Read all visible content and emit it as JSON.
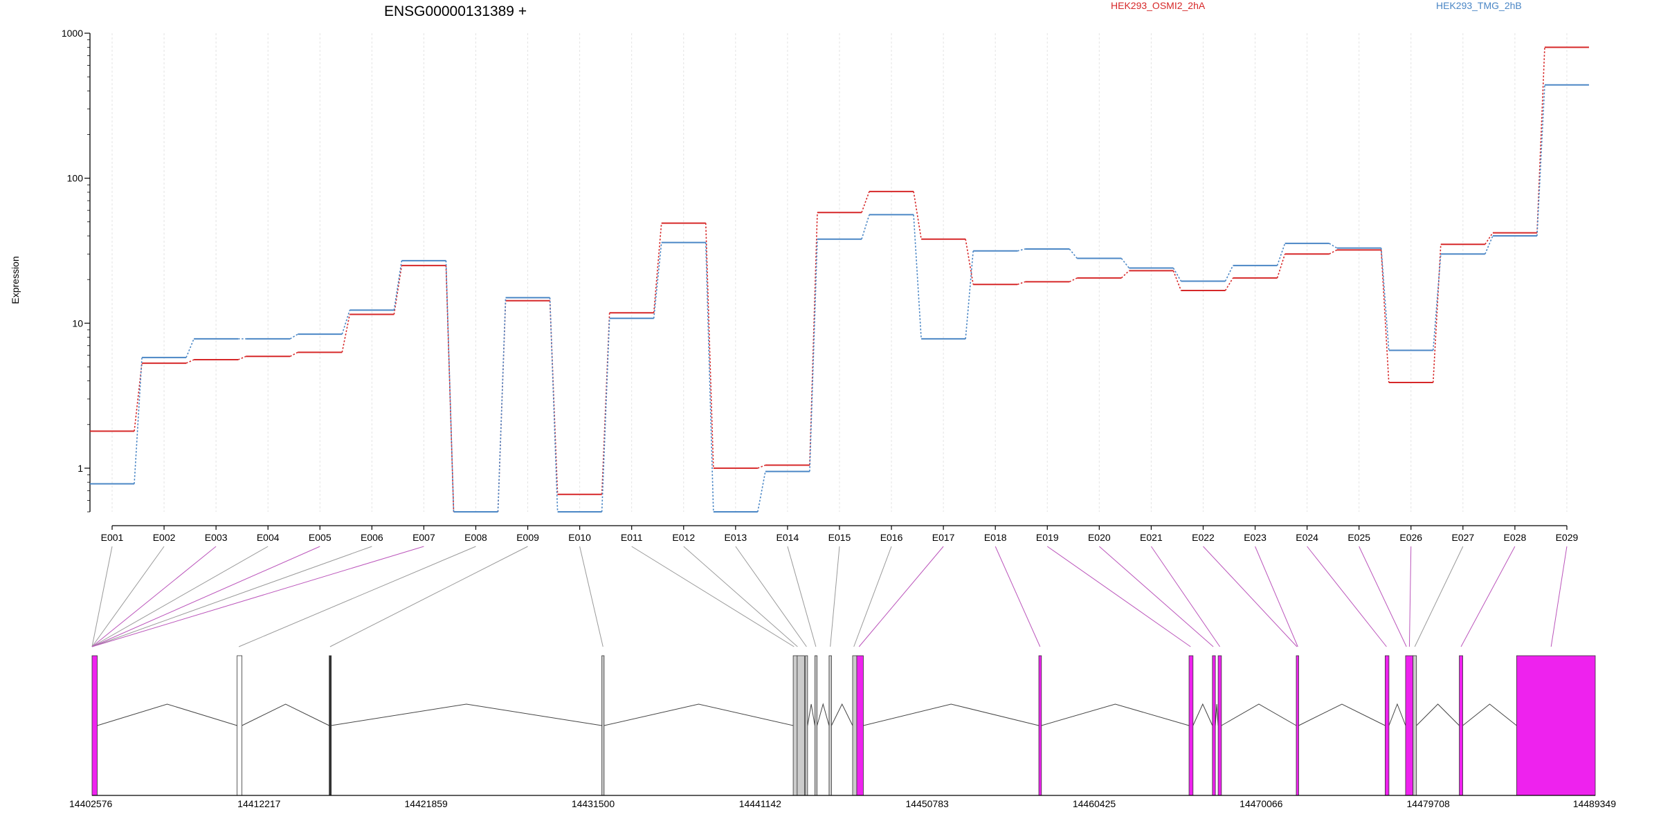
{
  "chart_data": {
    "type": "line",
    "title": "ENSG00000131389 +",
    "ylabel": "Expression",
    "xlabel": "",
    "y_scale": "log",
    "ylim": [
      0.5,
      1000
    ],
    "yticks": [
      1,
      10,
      100,
      1000
    ],
    "yticklabels": [
      "1",
      "10",
      "100",
      "1000"
    ],
    "grid": "vertical dotted per exon",
    "legend_position": "top",
    "categories": [
      "E001",
      "E002",
      "E003",
      "E004",
      "E005",
      "E006",
      "E007",
      "E008",
      "E009",
      "E010",
      "E011",
      "E012",
      "E013",
      "E014",
      "E015",
      "E016",
      "E017",
      "E018",
      "E019",
      "E020",
      "E021",
      "E022",
      "E023",
      "E024",
      "E025",
      "E026",
      "E027",
      "E028",
      "E029"
    ],
    "series": [
      {
        "name": "HEK293_OSMI2_2hA",
        "color": "#d62728",
        "values": [
          1.8,
          5.3,
          5.6,
          5.9,
          6.3,
          11.5,
          25.0,
          0.5,
          14.3,
          0.66,
          11.8,
          49.0,
          1.0,
          1.05,
          58.0,
          81.0,
          38.0,
          18.5,
          19.3,
          20.5,
          23.0,
          16.8,
          20.5,
          30.0,
          32.0,
          3.9,
          35.0,
          42.0,
          800.0
        ]
      },
      {
        "name": "HEK293_TMG_2hB",
        "color": "#4a86c5",
        "values": [
          0.78,
          5.8,
          7.8,
          7.8,
          8.4,
          12.3,
          27.0,
          0.5,
          15.0,
          0.5,
          10.8,
          36.0,
          0.5,
          0.95,
          38.0,
          56.0,
          7.8,
          31.5,
          32.5,
          28.0,
          24.0,
          19.5,
          25.0,
          35.5,
          33.0,
          6.5,
          30.0,
          40.0,
          440.0
        ]
      }
    ],
    "gene_model": {
      "coordinate_ticks": [
        "14402576",
        "14412217",
        "14421859",
        "14431500",
        "14441142",
        "14450783",
        "14460425",
        "14470066",
        "14479708",
        "14489349"
      ],
      "range": [
        14402576,
        14489349
      ],
      "exons": [
        {
          "start": 14402576,
          "end": 14402876,
          "fill": "#ee22ee"
        },
        {
          "start": 14410950,
          "end": 14411230,
          "fill": "#ffffff"
        },
        {
          "start": 14416265,
          "end": 14416365,
          "fill": "#333333"
        },
        {
          "start": 14432005,
          "end": 14432135,
          "fill": "#cccccc"
        },
        {
          "start": 14443050,
          "end": 14443280,
          "fill": "#cccccc"
        },
        {
          "start": 14443280,
          "end": 14443700,
          "fill": "#cccccc"
        },
        {
          "start": 14443750,
          "end": 14443880,
          "fill": "#cccccc"
        },
        {
          "start": 14444300,
          "end": 14444430,
          "fill": "#cccccc"
        },
        {
          "start": 14445120,
          "end": 14445260,
          "fill": "#cccccc"
        },
        {
          "start": 14446480,
          "end": 14446720,
          "fill": "#cccccc"
        },
        {
          "start": 14446720,
          "end": 14447100,
          "fill": "#ee22ee"
        },
        {
          "start": 14457230,
          "end": 14457380,
          "fill": "#ee22ee"
        },
        {
          "start": 14465900,
          "end": 14466130,
          "fill": "#ee22ee"
        },
        {
          "start": 14467250,
          "end": 14467420,
          "fill": "#ee22ee"
        },
        {
          "start": 14467580,
          "end": 14467770,
          "fill": "#ee22ee"
        },
        {
          "start": 14472090,
          "end": 14472230,
          "fill": "#ee22ee"
        },
        {
          "start": 14477220,
          "end": 14477440,
          "fill": "#ee22ee"
        },
        {
          "start": 14478400,
          "end": 14478830,
          "fill": "#ee22ee"
        },
        {
          "start": 14478830,
          "end": 14479030,
          "fill": "#cccccc"
        },
        {
          "start": 14481500,
          "end": 14481700,
          "fill": "#ee22ee"
        },
        {
          "start": 14484810,
          "end": 14489349,
          "fill": "#ee22ee"
        }
      ],
      "connectors": [
        {
          "exon": "E001",
          "target": 14402576,
          "color": "#999999"
        },
        {
          "exon": "E002",
          "target": 14402576,
          "color": "#999999"
        },
        {
          "exon": "E003",
          "target": 14402576,
          "color": "#bb55bb"
        },
        {
          "exon": "E004",
          "target": 14402576,
          "color": "#999999"
        },
        {
          "exon": "E005",
          "target": 14402576,
          "color": "#bb55bb"
        },
        {
          "exon": "E006",
          "target": 14402576,
          "color": "#999999"
        },
        {
          "exon": "E007",
          "target": 14402576,
          "color": "#bb55bb"
        },
        {
          "exon": "E008",
          "target": 14411050,
          "color": "#999999"
        },
        {
          "exon": "E009",
          "target": 14416315,
          "color": "#999999"
        },
        {
          "exon": "E010",
          "target": 14432070,
          "color": "#999999"
        },
        {
          "exon": "E011",
          "target": 14443100,
          "color": "#999999"
        },
        {
          "exon": "E012",
          "target": 14443300,
          "color": "#999999"
        },
        {
          "exon": "E013",
          "target": 14443820,
          "color": "#999999"
        },
        {
          "exon": "E014",
          "target": 14444360,
          "color": "#999999"
        },
        {
          "exon": "E015",
          "target": 14445190,
          "color": "#999999"
        },
        {
          "exon": "E016",
          "target": 14446550,
          "color": "#999999"
        },
        {
          "exon": "E017",
          "target": 14446850,
          "color": "#bb55bb"
        },
        {
          "exon": "E018",
          "target": 14457300,
          "color": "#bb55bb"
        },
        {
          "exon": "E019",
          "target": 14465990,
          "color": "#bb55bb"
        },
        {
          "exon": "E020",
          "target": 14467300,
          "color": "#bb55bb"
        },
        {
          "exon": "E021",
          "target": 14467680,
          "color": "#bb55bb"
        },
        {
          "exon": "E022",
          "target": 14472130,
          "color": "#bb55bb"
        },
        {
          "exon": "E023",
          "target": 14472180,
          "color": "#bb55bb"
        },
        {
          "exon": "E024",
          "target": 14477300,
          "color": "#bb55bb"
        },
        {
          "exon": "E025",
          "target": 14478450,
          "color": "#bb55bb"
        },
        {
          "exon": "E026",
          "target": 14478620,
          "color": "#bb55bb"
        },
        {
          "exon": "E027",
          "target": 14478930,
          "color": "#999999"
        },
        {
          "exon": "E028",
          "target": 14481600,
          "color": "#bb55bb"
        },
        {
          "exon": "E029",
          "target": 14486800,
          "color": "#bb55bb"
        }
      ]
    }
  }
}
